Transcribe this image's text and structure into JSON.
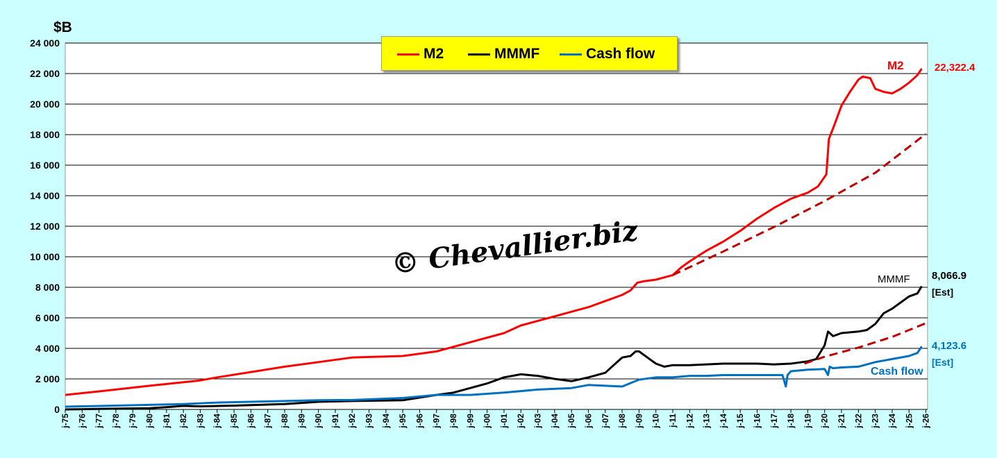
{
  "unit_label": "$B",
  "watermark": "© Chevallier.biz",
  "legend": [
    {
      "label": "M2",
      "color": "#ff0000"
    },
    {
      "label": "MMMF",
      "color": "#000000"
    },
    {
      "label": "Cash flow",
      "color": "#0070c0"
    }
  ],
  "annotations": {
    "m2_name": "M2",
    "m2_value": "22,322.4",
    "mmmf_name": "MMMF",
    "mmmf_value": "8,066.9",
    "mmmf_est": "[Est]",
    "cash_name": "Cash flow",
    "cash_value": "4,123.6",
    "cash_est": "[Est]"
  },
  "chart_data": {
    "type": "line",
    "title": "",
    "ylabel": "$B",
    "ylim": [
      0,
      24000
    ],
    "yticks": [
      0,
      2000,
      4000,
      6000,
      8000,
      10000,
      12000,
      14000,
      16000,
      18000,
      20000,
      22000,
      24000
    ],
    "ytick_labels": [
      "0",
      "2 000",
      "4 000",
      "6 000",
      "8 000",
      "10 000",
      "12 000",
      "14 000",
      "16 000",
      "18 000",
      "20 000",
      "22 000",
      "24 000"
    ],
    "xlim": [
      1975.0,
      2026.1
    ],
    "xtick_labels": [
      "j-75",
      "j-76",
      "j-77",
      "j-78",
      "j-79",
      "j-80",
      "j-81",
      "j-82",
      "j-83",
      "j-84",
      "j-85",
      "j-86",
      "j-87",
      "j-88",
      "j-89",
      "j-90",
      "j-91",
      "j-92",
      "j-93",
      "j-94",
      "j-95",
      "j-96",
      "j-97",
      "j-98",
      "j-99",
      "j-00",
      "j-01",
      "j-02",
      "j-03",
      "j-04",
      "j-05",
      "j-06",
      "j-07",
      "j-08",
      "j-09",
      "j-10",
      "j-11",
      "j-12",
      "j-13",
      "j-14",
      "j-15",
      "j-16",
      "j-17",
      "j-18",
      "j-19",
      "j-20",
      "j-21",
      "j-22",
      "j-23",
      "j-24",
      "j-25",
      "j-26"
    ],
    "grid": true,
    "series": [
      {
        "name": "M2",
        "color": "#ff0000",
        "style": "solid",
        "x": [
          1975,
          1977,
          1980,
          1983,
          1984,
          1986,
          1988,
          1990,
          1992,
          1995,
          1997,
          1999,
          2001,
          2002,
          2003,
          2004,
          2005,
          2006,
          2007,
          2008,
          2008.5,
          2008.9,
          2009.3,
          2010,
          2011,
          2011.5,
          2012,
          2013,
          2014,
          2015,
          2016,
          2017,
          2018,
          2019,
          2019.6,
          2020.1,
          2020.25,
          2020.6,
          2021,
          2021.5,
          2022,
          2022.25,
          2022.7,
          2023,
          2023.5,
          2024,
          2024.5,
          2025,
          2025.5,
          2025.75
        ],
        "y": [
          950,
          1180,
          1550,
          1900,
          2100,
          2450,
          2800,
          3100,
          3400,
          3500,
          3800,
          4400,
          5000,
          5500,
          5800,
          6100,
          6400,
          6700,
          7100,
          7500,
          7800,
          8300,
          8400,
          8500,
          8800,
          9300,
          9700,
          10400,
          11000,
          11700,
          12500,
          13200,
          13800,
          14200,
          14600,
          15400,
          17700,
          18700,
          19900,
          20800,
          21600,
          21800,
          21700,
          21000,
          20800,
          20700,
          21000,
          21400,
          21900,
          22322.4
        ]
      },
      {
        "name": "MMMF",
        "color": "#000000",
        "style": "solid",
        "x": [
          1975,
          1978,
          1980,
          1981,
          1982,
          1983,
          1985,
          1988,
          1990,
          1992,
          1995,
          1997,
          1998,
          1999,
          2000,
          2001,
          2002,
          2003,
          2004,
          2005,
          2006,
          2007,
          2007.5,
          2008,
          2008.5,
          2008.8,
          2009,
          2009.5,
          2010,
          2010.5,
          2011,
          2012,
          2013,
          2014,
          2015,
          2016,
          2017,
          2018,
          2019,
          2019.5,
          2020,
          2020.2,
          2020.5,
          2021,
          2022,
          2022.5,
          2023,
          2023.5,
          2024,
          2024.5,
          2025,
          2025.5,
          2025.75
        ],
        "y": [
          0,
          50,
          80,
          150,
          230,
          200,
          250,
          350,
          500,
          550,
          600,
          950,
          1100,
          1400,
          1700,
          2100,
          2300,
          2200,
          2000,
          1850,
          2100,
          2400,
          2900,
          3400,
          3500,
          3800,
          3800,
          3400,
          3000,
          2800,
          2900,
          2900,
          2950,
          3000,
          3000,
          3000,
          2950,
          3000,
          3150,
          3300,
          4200,
          5100,
          4800,
          5000,
          5100,
          5200,
          5600,
          6300,
          6600,
          7000,
          7400,
          7600,
          8066.9
        ]
      },
      {
        "name": "Cash flow",
        "color": "#0070c0",
        "style": "solid",
        "x": [
          1975,
          1978,
          1980,
          1982,
          1984,
          1986,
          1988,
          1990,
          1992,
          1995,
          1997,
          1999,
          2001,
          2003,
          2005,
          2006,
          2007,
          2008,
          2009,
          2010,
          2011,
          2012,
          2013,
          2014,
          2015,
          2016,
          2017,
          2017.5,
          2017.7,
          2017.8,
          2018,
          2019,
          2020,
          2020.2,
          2020.3,
          2020.5,
          2021,
          2022,
          2023,
          2024,
          2025,
          2025.5,
          2025.75
        ],
        "y": [
          180,
          250,
          300,
          350,
          450,
          500,
          550,
          600,
          620,
          750,
          950,
          950,
          1100,
          1300,
          1400,
          1600,
          1550,
          1500,
          1950,
          2100,
          2100,
          2200,
          2200,
          2250,
          2250,
          2250,
          2250,
          2250,
          1500,
          2250,
          2500,
          2600,
          2650,
          2250,
          2800,
          2700,
          2750,
          2800,
          3100,
          3300,
          3500,
          3700,
          4123.6
        ]
      },
      {
        "name": "",
        "color": "#c00000",
        "style": "dashed",
        "x": [
          2011,
          2014,
          2017,
          2020,
          2023,
          2026
        ],
        "y": [
          8800,
          10350,
          11950,
          13650,
          15500,
          18050
        ]
      },
      {
        "name": "",
        "color": "#c00000",
        "style": "dashed",
        "x": [
          2018.8,
          2020,
          2022,
          2024,
          2026
        ],
        "y": [
          3000,
          3450,
          4050,
          4750,
          5650
        ]
      }
    ]
  }
}
